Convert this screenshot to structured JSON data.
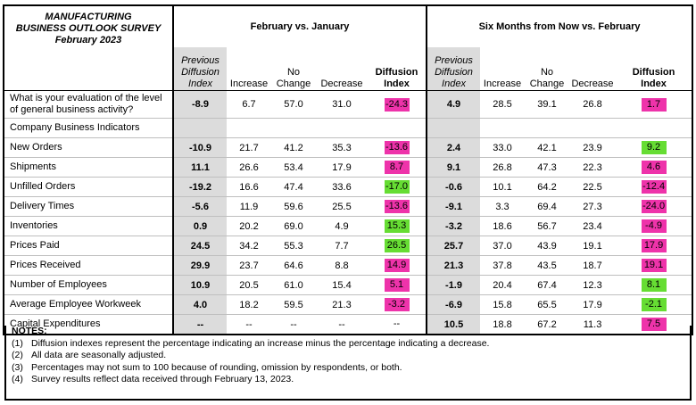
{
  "survey": {
    "title_line1": "MANUFACTURING",
    "title_line2": "BUSINESS OUTLOOK SURVEY",
    "title_line3": "February 2023",
    "group1": "February vs. January",
    "group2": "Six Months from Now vs. February",
    "col_prev_1": "Previous",
    "col_prev_2": "Diffusion",
    "col_prev_3": "Index",
    "col_increase": "Increase",
    "col_nochange_1": "No",
    "col_nochange_2": "Change",
    "col_decrease": "Decrease",
    "col_diff_1": "Diffusion",
    "col_diff_2": "Index"
  },
  "general_question": {
    "label_1": "What is your evaluation of the level",
    "label_2": "of general business activity?",
    "cur": [
      "-8.9",
      "6.7",
      "57.0",
      "31.0",
      "-24.3"
    ],
    "fut": [
      "4.9",
      "28.5",
      "39.1",
      "26.8",
      "1.7"
    ],
    "cur_color": "neg",
    "fut_color": "neg"
  },
  "section_label": "Company Business Indicators",
  "rows": [
    {
      "label": "New Orders",
      "cur": [
        "-10.9",
        "21.7",
        "41.2",
        "35.3",
        "-13.6"
      ],
      "cur_color": "neg",
      "fut": [
        "2.4",
        "33.0",
        "42.1",
        "23.9",
        "9.2"
      ],
      "fut_color": "pos"
    },
    {
      "label": "Shipments",
      "cur": [
        "11.1",
        "26.6",
        "53.4",
        "17.9",
        "8.7"
      ],
      "cur_color": "neg",
      "fut": [
        "9.1",
        "26.8",
        "47.3",
        "22.3",
        "4.6"
      ],
      "fut_color": "neg"
    },
    {
      "label": "Unfilled Orders",
      "cur": [
        "-19.2",
        "16.6",
        "47.4",
        "33.6",
        "-17.0"
      ],
      "cur_color": "pos",
      "fut": [
        "-0.6",
        "10.1",
        "64.2",
        "22.5",
        "-12.4"
      ],
      "fut_color": "neg"
    },
    {
      "label": "Delivery Times",
      "cur": [
        "-5.6",
        "11.9",
        "59.6",
        "25.5",
        "-13.6"
      ],
      "cur_color": "neg",
      "fut": [
        "-9.1",
        "3.3",
        "69.4",
        "27.3",
        "-24.0"
      ],
      "fut_color": "neg"
    },
    {
      "label": "Inventories",
      "cur": [
        "0.9",
        "20.2",
        "69.0",
        "4.9",
        "15.3"
      ],
      "cur_color": "pos",
      "fut": [
        "-3.2",
        "18.6",
        "56.7",
        "23.4",
        "-4.9"
      ],
      "fut_color": "neg"
    },
    {
      "label": "Prices Paid",
      "cur": [
        "24.5",
        "34.2",
        "55.3",
        "7.7",
        "26.5"
      ],
      "cur_color": "pos",
      "fut": [
        "25.7",
        "37.0",
        "43.9",
        "19.1",
        "17.9"
      ],
      "fut_color": "neg"
    },
    {
      "label": "Prices Received",
      "cur": [
        "29.9",
        "23.7",
        "64.6",
        "8.8",
        "14.9"
      ],
      "cur_color": "neg",
      "fut": [
        "21.3",
        "37.8",
        "43.5",
        "18.7",
        "19.1"
      ],
      "fut_color": "neg"
    },
    {
      "label": "Number of Employees",
      "cur": [
        "10.9",
        "20.5",
        "61.0",
        "15.4",
        "5.1"
      ],
      "cur_color": "neg",
      "fut": [
        "-1.9",
        "20.4",
        "67.4",
        "12.3",
        "8.1"
      ],
      "fut_color": "pos"
    },
    {
      "label": "Average Employee Workweek",
      "cur": [
        "4.0",
        "18.2",
        "59.5",
        "21.3",
        "-3.2"
      ],
      "cur_color": "neg",
      "fut": [
        "-6.9",
        "15.8",
        "65.5",
        "17.9",
        "-2.1"
      ],
      "fut_color": "pos"
    },
    {
      "label": "Capital Expenditures",
      "cur": [
        "--",
        "--",
        "--",
        "--",
        "--"
      ],
      "cur_color": "none",
      "fut": [
        "10.5",
        "18.8",
        "67.2",
        "11.3",
        "7.5"
      ],
      "fut_color": "neg"
    }
  ],
  "notes": {
    "heading": "NOTES:",
    "items": [
      {
        "num": "(1)",
        "text": "Diffusion indexes represent the percentage indicating an increase minus the percentage indicating a decrease."
      },
      {
        "num": "(2)",
        "text": "All data are seasonally adjusted."
      },
      {
        "num": "(3)",
        "text": "Percentages may not sum to 100 because of rounding, omission by respondents, or both."
      },
      {
        "num": "(4)",
        "text": "Survey results reflect data received through February 13, 2023."
      }
    ]
  },
  "colors": {
    "pos": "#66dd33",
    "neg": "#ee33aa",
    "prev_bg": "#dcdcdc"
  }
}
